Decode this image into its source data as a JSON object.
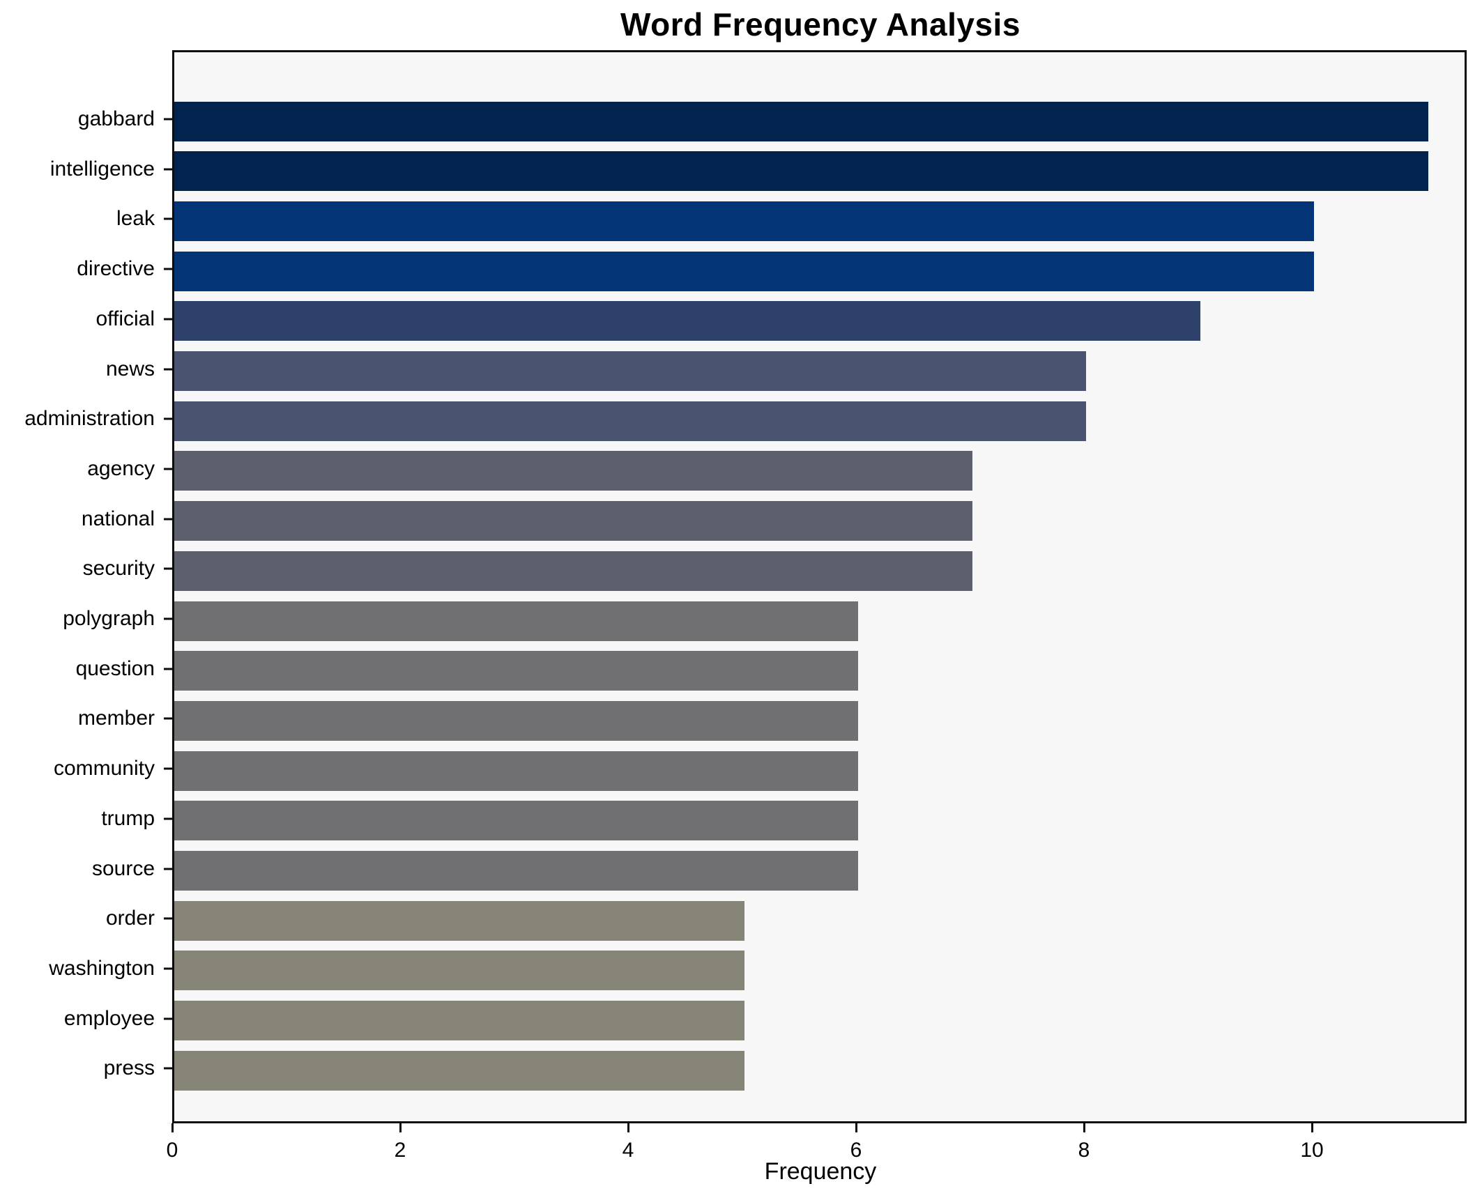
{
  "title": "Word Frequency Analysis",
  "xlabel": "Frequency",
  "colors": {
    "figure_background": "#ffffff",
    "plot_background": "#f7f7f8",
    "axis_border": "#0d0d0d",
    "text": "#000000"
  },
  "chart_data": {
    "type": "bar",
    "orientation": "horizontal",
    "title": "Word Frequency Analysis",
    "xlabel": "Frequency",
    "ylabel": "",
    "grid": false,
    "legend": null,
    "categories": [
      "gabbard",
      "intelligence",
      "leak",
      "directive",
      "official",
      "news",
      "administration",
      "agency",
      "national",
      "security",
      "polygraph",
      "question",
      "member",
      "community",
      "trump",
      "source",
      "order",
      "washington",
      "employee",
      "press"
    ],
    "values": [
      11,
      11,
      10,
      10,
      9,
      8,
      8,
      7,
      7,
      7,
      6,
      6,
      6,
      6,
      6,
      6,
      5,
      5,
      5,
      5
    ],
    "bar_colors": [
      "#02234d",
      "#02234d",
      "#033577",
      "#033577",
      "#2e416b",
      "#4a5370",
      "#4a5370",
      "#5c606c",
      "#5c606c",
      "#5c606c",
      "#707072",
      "#707072",
      "#707072",
      "#707072",
      "#707072",
      "#707072",
      "#868578",
      "#868578",
      "#868578",
      "#868578"
    ],
    "x_ticks": [
      0,
      2,
      4,
      6,
      8,
      10
    ],
    "xlim": [
      0,
      11.36
    ]
  }
}
